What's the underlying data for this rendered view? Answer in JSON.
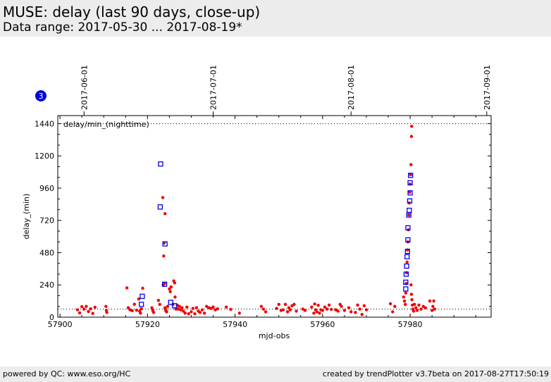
{
  "header": {
    "title": "MUSE: delay (last 90 days, close-up)",
    "subtitle": "Data range: 2017-05-30 ... 2017-08-19*"
  },
  "footer": {
    "left": "powered by QC: www.eso.org/HC",
    "right": "created by trendPlotter v3.7beta on 2017-08-27T17:50:19"
  },
  "badge": "3",
  "colors": {
    "points": "#ee0000",
    "squares": "#0000ee",
    "badge": "#0000dd",
    "header_bg": "#ececec"
  },
  "chart_data": {
    "type": "scatter",
    "plot_label": "delay/min_(nighttime)",
    "xlabel": "mjd-obs",
    "ylabel": "delay_(min)",
    "xlim": [
      57899.5,
      57998.5
    ],
    "ylim": [
      0,
      1500
    ],
    "x_ticks": [
      57900,
      57920,
      57940,
      57960,
      57980
    ],
    "y_ticks": [
      0,
      240,
      480,
      720,
      960,
      1200,
      1440
    ],
    "date_markers": [
      {
        "label": "2017-06-01",
        "x": 57905.5
      },
      {
        "label": "2017-07-01",
        "x": 57935.0
      },
      {
        "label": "2017-08-01",
        "x": 57966.5
      },
      {
        "label": "2017-09-01",
        "x": 57997.5
      }
    ],
    "reference_lines_y": [
      60,
      1440
    ],
    "series": [
      {
        "marker": "dot",
        "points": [
          [
            57904.0,
            55
          ],
          [
            57904.5,
            32
          ],
          [
            57905.0,
            78
          ],
          [
            57905.5,
            60
          ],
          [
            57906.0,
            80
          ],
          [
            57906.5,
            42
          ],
          [
            57907.0,
            62
          ],
          [
            57907.5,
            28
          ],
          [
            57908.0,
            74
          ],
          [
            57910.5,
            80
          ],
          [
            57910.6,
            50
          ],
          [
            57910.7,
            35
          ],
          [
            57915.3,
            218
          ],
          [
            57915.6,
            70
          ],
          [
            57916.0,
            55
          ],
          [
            57916.5,
            48
          ],
          [
            57917.0,
            96
          ],
          [
            57917.5,
            52
          ],
          [
            57918.0,
            135
          ],
          [
            57918.2,
            45
          ],
          [
            57918.4,
            30
          ],
          [
            57918.6,
            62
          ],
          [
            57918.9,
            215
          ],
          [
            57921.0,
            70
          ],
          [
            57921.2,
            50
          ],
          [
            57921.4,
            35
          ],
          [
            57922.5,
            125
          ],
          [
            57922.8,
            95
          ],
          [
            57923.5,
            890
          ],
          [
            57923.7,
            455
          ],
          [
            57924.0,
            770
          ],
          [
            57923.8,
            552
          ],
          [
            57923.9,
            250
          ],
          [
            57923.6,
            240
          ],
          [
            57924.0,
            70
          ],
          [
            57924.1,
            60
          ],
          [
            57924.2,
            45
          ],
          [
            57924.4,
            40
          ],
          [
            57924.6,
            80
          ],
          [
            57925.0,
            210
          ],
          [
            57925.2,
            190
          ],
          [
            57925.4,
            225
          ],
          [
            57925.8,
            95
          ],
          [
            57926.0,
            270
          ],
          [
            57926.2,
            255
          ],
          [
            57926.3,
            150
          ],
          [
            57926.5,
            60
          ],
          [
            57926.8,
            88
          ],
          [
            57927.0,
            60
          ],
          [
            57927.3,
            80
          ],
          [
            57927.6,
            55
          ],
          [
            57927.9,
            70
          ],
          [
            57928.2,
            45
          ],
          [
            57928.6,
            30
          ],
          [
            57929.0,
            75
          ],
          [
            57929.4,
            25
          ],
          [
            57930.0,
            40
          ],
          [
            57930.4,
            65
          ],
          [
            57930.8,
            25
          ],
          [
            57931.2,
            70
          ],
          [
            57931.6,
            45
          ],
          [
            57932.0,
            35
          ],
          [
            57932.5,
            55
          ],
          [
            57933.0,
            30
          ],
          [
            57933.5,
            80
          ],
          [
            57934.0,
            70
          ],
          [
            57934.5,
            65
          ],
          [
            57935.0,
            75
          ],
          [
            57935.5,
            55
          ],
          [
            57936.0,
            62
          ],
          [
            57938.0,
            75
          ],
          [
            57939.0,
            58
          ],
          [
            57941.0,
            30
          ],
          [
            57946.0,
            80
          ],
          [
            57946.5,
            60
          ],
          [
            57947.0,
            40
          ],
          [
            57949.5,
            65
          ],
          [
            57950.0,
            95
          ],
          [
            57950.5,
            50
          ],
          [
            57951.0,
            55
          ],
          [
            57951.5,
            95
          ],
          [
            57952.0,
            40
          ],
          [
            57952.3,
            70
          ],
          [
            57952.6,
            55
          ],
          [
            57953.0,
            85
          ],
          [
            57953.5,
            95
          ],
          [
            57954.0,
            45
          ],
          [
            57955.5,
            60
          ],
          [
            57956.0,
            50
          ],
          [
            57957.5,
            75
          ],
          [
            57958.0,
            30
          ],
          [
            57958.2,
            98
          ],
          [
            57958.4,
            55
          ],
          [
            57958.7,
            40
          ],
          [
            57959.0,
            88
          ],
          [
            57959.3,
            30
          ],
          [
            57959.6,
            55
          ],
          [
            57960.0,
            50
          ],
          [
            57960.5,
            75
          ],
          [
            57961.0,
            60
          ],
          [
            57961.5,
            90
          ],
          [
            57962.0,
            58
          ],
          [
            57963.0,
            55
          ],
          [
            57963.5,
            45
          ],
          [
            57964.0,
            95
          ],
          [
            57964.3,
            80
          ],
          [
            57965.0,
            50
          ],
          [
            57966.0,
            70
          ],
          [
            57966.5,
            40
          ],
          [
            57967.5,
            35
          ],
          [
            57968.0,
            90
          ],
          [
            57968.5,
            60
          ],
          [
            57969.0,
            20
          ],
          [
            57969.5,
            85
          ],
          [
            57970.0,
            55
          ],
          [
            57975.5,
            100
          ],
          [
            57976.0,
            40
          ],
          [
            57976.5,
            80
          ],
          [
            57978.5,
            150
          ],
          [
            57978.7,
            120
          ],
          [
            57978.9,
            95
          ],
          [
            57979.0,
            180
          ],
          [
            57979.1,
            250
          ],
          [
            57979.2,
            330
          ],
          [
            57979.3,
            410
          ],
          [
            57979.4,
            500
          ],
          [
            57979.5,
            560
          ],
          [
            57979.6,
            650
          ],
          [
            57979.7,
            760
          ],
          [
            57979.8,
            850
          ],
          [
            57979.9,
            930
          ],
          [
            57980.0,
            990
          ],
          [
            57980.1,
            1060
          ],
          [
            57980.2,
            1135
          ],
          [
            57980.3,
            1345
          ],
          [
            57980.35,
            1420
          ],
          [
            57980.2,
            240
          ],
          [
            57980.3,
            170
          ],
          [
            57980.4,
            130
          ],
          [
            57980.5,
            90
          ],
          [
            57980.6,
            60
          ],
          [
            57980.8,
            45
          ],
          [
            57981.0,
            95
          ],
          [
            57981.3,
            70
          ],
          [
            57981.6,
            50
          ],
          [
            57982.0,
            90
          ],
          [
            57982.5,
            60
          ],
          [
            57983.0,
            80
          ],
          [
            57983.5,
            70
          ],
          [
            57984.5,
            120
          ],
          [
            57985.0,
            50
          ],
          [
            57985.2,
            80
          ],
          [
            57985.4,
            120
          ],
          [
            57985.6,
            60
          ]
        ]
      },
      {
        "marker": "open-square",
        "points": [
          [
            57918.8,
            155
          ],
          [
            57918.6,
            95
          ],
          [
            57923.0,
            1140
          ],
          [
            57922.9,
            820
          ],
          [
            57924.0,
            545
          ],
          [
            57923.9,
            245
          ],
          [
            57925.3,
            110
          ],
          [
            57926.2,
            85
          ],
          [
            57979.0,
            210
          ],
          [
            57979.0,
            260
          ],
          [
            57979.1,
            320
          ],
          [
            57979.2,
            380
          ],
          [
            57979.3,
            450
          ],
          [
            57979.4,
            490
          ],
          [
            57979.5,
            575
          ],
          [
            57979.5,
            665
          ],
          [
            57979.7,
            760
          ],
          [
            57979.8,
            795
          ],
          [
            57979.9,
            865
          ],
          [
            57980.0,
            925
          ],
          [
            57980.0,
            1000
          ],
          [
            57980.1,
            1055
          ]
        ]
      }
    ]
  }
}
